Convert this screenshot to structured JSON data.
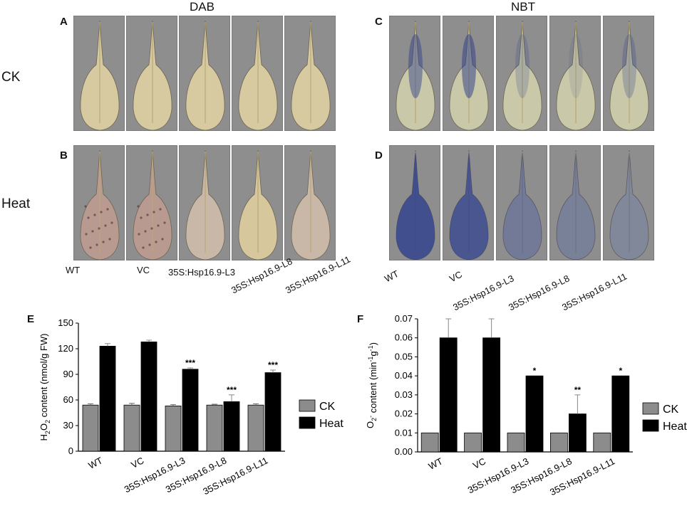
{
  "panels": {
    "A": "A",
    "B": "B",
    "C": "C",
    "D": "D",
    "E": "E",
    "F": "F"
  },
  "stains": {
    "dab": "DAB",
    "nbt": "NBT"
  },
  "rows": {
    "ck": "CK",
    "heat": "Heat"
  },
  "genotypes": [
    "WT",
    "VC",
    "35S:Hsp16.9-L3",
    "35S:Hsp16.9-L8",
    "35S:Hsp16.9-L11"
  ],
  "colors": {
    "ck": "#8c8c8c",
    "heat": "#000000",
    "dab_leaf": "#d8caa0",
    "nbt_leaf": "#c9c8a8",
    "nbt_stain": "#2a3a8a",
    "dab_heat": "#b89a90",
    "background_gray": "#8e8e8e"
  },
  "chart_data": [
    {
      "type": "bar",
      "panel": "E",
      "ylabel_parts": [
        "H",
        "2",
        "O",
        "2",
        " content (nmol/g FW)"
      ],
      "categories": [
        "WT",
        "VC",
        "35S:Hsp16.9-L3",
        "35S:Hsp16.9-L8",
        "35S:Hsp16.9-L11"
      ],
      "ylim": [
        0,
        150
      ],
      "yticks": [
        0,
        30,
        60,
        90,
        120,
        150
      ],
      "series": [
        {
          "name": "CK",
          "values": [
            54,
            54,
            53,
            54,
            54
          ],
          "errors": [
            1.5,
            2,
            1.5,
            1,
            1.5
          ],
          "sig": [
            "",
            "",
            "",
            "",
            ""
          ]
        },
        {
          "name": "Heat",
          "values": [
            123,
            128,
            96,
            58,
            92
          ],
          "errors": [
            3,
            2,
            1.5,
            8,
            3
          ],
          "sig": [
            "",
            "",
            "***",
            "***",
            "***"
          ]
        }
      ],
      "legend": "right"
    },
    {
      "type": "bar",
      "panel": "F",
      "ylabel_parts": [
        "O",
        "2",
        "-",
        " content (min",
        "-1",
        "g",
        "-1",
        ")"
      ],
      "categories": [
        "WT",
        "VC",
        "35S:Hsp16.9-L3",
        "35S:Hsp16.9-L8",
        "35S:Hsp16.9-L11"
      ],
      "ylim": [
        0,
        0.07
      ],
      "yticks": [
        "0.00",
        "0.01",
        "0.02",
        "0.03",
        "0.04",
        "0.05",
        "0.06",
        "0.07"
      ],
      "series": [
        {
          "name": "CK",
          "values": [
            0.01,
            0.01,
            0.01,
            0.01,
            0.01
          ],
          "errors": [
            0,
            0,
            0,
            0,
            0
          ],
          "sig": [
            "",
            "",
            "",
            "",
            ""
          ]
        },
        {
          "name": "Heat",
          "values": [
            0.06,
            0.06,
            0.04,
            0.02,
            0.04
          ],
          "errors": [
            0.01,
            0.01,
            0,
            0.01,
            0
          ],
          "sig": [
            "",
            "",
            "*",
            "**",
            "*"
          ]
        }
      ],
      "legend": "right"
    }
  ]
}
